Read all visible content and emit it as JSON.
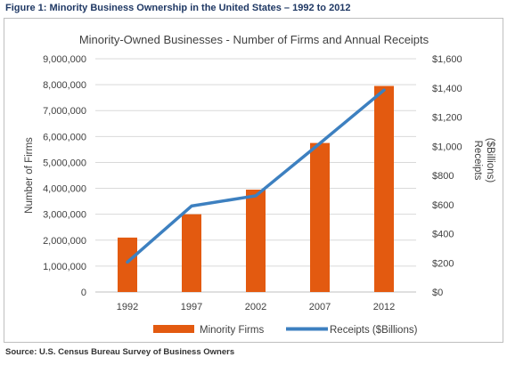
{
  "figure_title": "Figure 1: Minority Business Ownership in the United States – 1992 to 2012",
  "source": "Source: U.S. Census Bureau Survey of Business Owners",
  "colors": {
    "bars": "#e35a10",
    "line": "#3d80c0",
    "title_text": "#1f3864",
    "axis_text": "#404040"
  },
  "chart_data": {
    "type": "bar",
    "title": "Minority-Owned Businesses - Number of Firms and Annual Receipts",
    "categories": [
      "1992",
      "1997",
      "2002",
      "2007",
      "2012"
    ],
    "ylabel": "Number of Firms",
    "y2label_line1": "Receipts",
    "y2label_line2": "($Billions)",
    "ylim": [
      0,
      9000000
    ],
    "y2lim": [
      0,
      1600
    ],
    "yticks": [
      "0",
      "1,000,000",
      "2,000,000",
      "3,000,000",
      "4,000,000",
      "5,000,000",
      "6,000,000",
      "7,000,000",
      "8,000,000",
      "9,000,000"
    ],
    "y2ticks": [
      "$0",
      "$200",
      "$400",
      "$600",
      "$800",
      "$1,000",
      "$1,200",
      "$1,400",
      "$1,600"
    ],
    "grid": true,
    "legend_position": "bottom",
    "series": [
      {
        "name": "Minority Firms",
        "type": "bar",
        "axis": "left",
        "values": [
          2100000,
          3000000,
          3950000,
          5750000,
          7950000
        ]
      },
      {
        "name": "Receipts ($Billions)",
        "type": "line",
        "axis": "right",
        "values": [
          205,
          590,
          660,
          1020,
          1385
        ]
      }
    ]
  }
}
